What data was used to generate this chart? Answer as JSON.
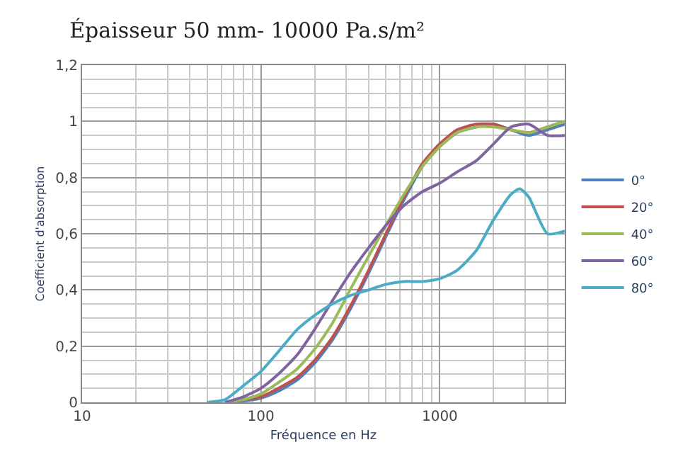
{
  "chart_data": {
    "type": "line",
    "title": "Épaisseur 50 mm- 10000 Pa.s/m²",
    "xlabel": "Fréquence en Hz",
    "ylabel": "Coefficient d'absorption",
    "log": "x",
    "grid": true,
    "legend": "right",
    "marker": "none",
    "line_style": "solid",
    "xlim": [
      10,
      5000
    ],
    "xticks": [
      10,
      100,
      1000
    ],
    "ylim": [
      0,
      1.2
    ],
    "yticks": [
      0,
      {
        "value": 0.2,
        "label": "0,2"
      },
      {
        "value": 0.4,
        "label": "0,4"
      },
      {
        "value": 0.6,
        "label": "0,6"
      },
      {
        "value": 0.8,
        "label": "0,8"
      },
      1,
      {
        "value": 1.2,
        "label": "1,2"
      }
    ],
    "x": [
      63,
      80,
      100,
      125,
      160,
      200,
      250,
      315,
      400,
      500,
      630,
      800,
      1000,
      1250,
      1600,
      2000,
      2500,
      3150,
      4000,
      5000
    ],
    "series": [
      {
        "name": "0°",
        "color": "#4f81bd",
        "values": [
          0,
          0.005,
          0.015,
          0.04,
          0.08,
          0.14,
          0.22,
          0.33,
          0.46,
          0.59,
          0.72,
          0.84,
          0.91,
          0.96,
          0.98,
          0.99,
          0.97,
          0.95,
          0.97,
          0.99
        ]
      },
      {
        "name": "20°",
        "color": "#c0504d",
        "values": [
          0,
          0.01,
          0.02,
          0.05,
          0.09,
          0.15,
          0.23,
          0.34,
          0.47,
          0.6,
          0.73,
          0.85,
          0.92,
          0.97,
          0.99,
          0.99,
          0.97,
          0.96,
          0.98,
          1.0
        ]
      },
      {
        "name": "40°",
        "color": "#9bbb59",
        "values": [
          0,
          0.01,
          0.03,
          0.07,
          0.12,
          0.19,
          0.28,
          0.4,
          0.52,
          0.63,
          0.74,
          0.84,
          0.91,
          0.96,
          0.98,
          0.98,
          0.97,
          0.96,
          0.98,
          1.0
        ]
      },
      {
        "name": "60°",
        "color": "#8064a2",
        "values": [
          0,
          0.02,
          0.05,
          0.1,
          0.17,
          0.26,
          0.36,
          0.46,
          0.55,
          0.63,
          0.7,
          0.75,
          0.78,
          0.82,
          0.86,
          0.92,
          0.98,
          0.99,
          0.95,
          0.95
        ]
      },
      {
        "name": "80°",
        "color": "#4bacc6",
        "x": [
          50,
          63,
          80,
          100,
          125,
          160,
          200,
          250,
          315,
          400,
          500,
          630,
          800,
          1000,
          1250,
          1600,
          2000,
          2500,
          2800,
          3150,
          4000,
          5000
        ],
        "values": [
          0,
          0.01,
          0.06,
          0.11,
          0.18,
          0.26,
          0.31,
          0.35,
          0.38,
          0.4,
          0.42,
          0.43,
          0.43,
          0.44,
          0.47,
          0.54,
          0.65,
          0.74,
          0.76,
          0.73,
          0.6,
          0.61
        ]
      }
    ]
  }
}
